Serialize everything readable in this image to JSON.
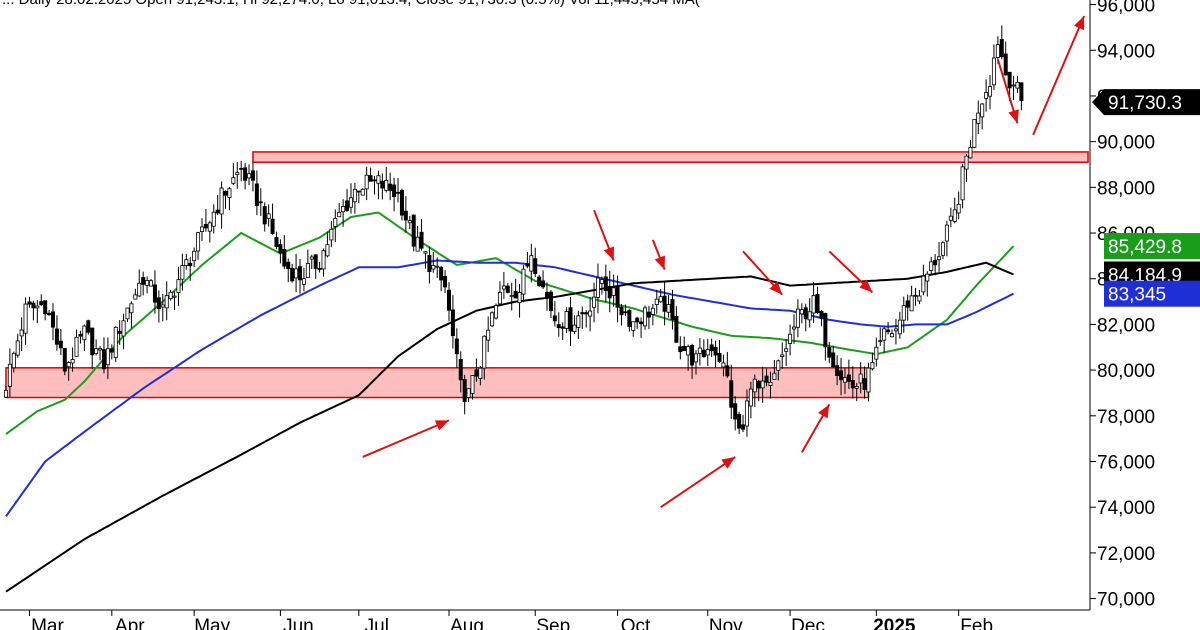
{
  "header": {
    "text": "...  Daily 28.02.2025  Open 91,243.1, Hi 92,274.0, Lo 91,013.4, Close 91,730.3 (0.5%)  Vol 11,443,454  MA(",
    "ma_suffix_color": "#00aa00"
  },
  "colors": {
    "candle": "#000000",
    "ma_green": "#1a9e1a",
    "ma_blue": "#1f2fd6",
    "ma_black": "#000000",
    "zone_fill": "#ffb3b3",
    "zone_stroke": "#e00000",
    "arrow": "#e01010",
    "price_tag_bg": "#000000",
    "green_tag_bg": "#1a9e1a",
    "blue_tag_bg": "#1f2fd6"
  },
  "chart_data": {
    "type": "candlestick",
    "title": "",
    "xlabel": "",
    "ylabel": "",
    "ylim": [
      69500,
      96200
    ],
    "yticks": [
      70000,
      72000,
      74000,
      76000,
      78000,
      80000,
      82000,
      84000,
      86000,
      88000,
      90000,
      92000,
      94000,
      96000
    ],
    "ytick_labels": [
      "70,000",
      "72,000",
      "74,000",
      "76,000",
      "78,000",
      "80,000",
      "82,000",
      "84,000",
      "86,000",
      "88,000",
      "90,000",
      "92,000",
      "94,000",
      "96,000"
    ],
    "x_tick_labels": [
      {
        "label": "Mar",
        "idx": 6
      },
      {
        "label": "Apr",
        "idx": 27
      },
      {
        "label": "May",
        "idx": 48
      },
      {
        "label": "Jun",
        "idx": 70
      },
      {
        "label": "Jul",
        "idx": 90
      },
      {
        "label": "Aug",
        "idx": 113
      },
      {
        "label": "Sep",
        "idx": 135
      },
      {
        "label": "Oct",
        "idx": 156
      },
      {
        "label": "Nov",
        "idx": 179
      },
      {
        "label": "Dec",
        "idx": 200
      },
      {
        "label": "2025",
        "idx": 222,
        "bold": true
      },
      {
        "label": "Feb",
        "idx": 243
      }
    ],
    "close_anchors": [
      [
        0,
        79400
      ],
      [
        5,
        82600
      ],
      [
        10,
        82900
      ],
      [
        15,
        80100
      ],
      [
        20,
        81600
      ],
      [
        25,
        80300
      ],
      [
        30,
        82300
      ],
      [
        35,
        84100
      ],
      [
        40,
        82600
      ],
      [
        45,
        84300
      ],
      [
        50,
        85900
      ],
      [
        55,
        87600
      ],
      [
        60,
        88800
      ],
      [
        63,
        87900
      ],
      [
        67,
        86400
      ],
      [
        71,
        84600
      ],
      [
        75,
        84100
      ],
      [
        80,
        84800
      ],
      [
        85,
        86800
      ],
      [
        90,
        88100
      ],
      [
        95,
        88200
      ],
      [
        100,
        87700
      ],
      [
        104,
        85700
      ],
      [
        108,
        84700
      ],
      [
        112,
        83600
      ],
      [
        116,
        79200
      ],
      [
        118,
        78900
      ],
      [
        121,
        80400
      ],
      [
        124,
        82300
      ],
      [
        127,
        83600
      ],
      [
        131,
        83500
      ],
      [
        134,
        85200
      ],
      [
        137,
        83600
      ],
      [
        140,
        82300
      ],
      [
        144,
        82100
      ],
      [
        148,
        82600
      ],
      [
        152,
        84000
      ],
      [
        156,
        82900
      ],
      [
        160,
        82100
      ],
      [
        164,
        82600
      ],
      [
        168,
        82900
      ],
      [
        172,
        81100
      ],
      [
        176,
        80400
      ],
      [
        180,
        81100
      ],
      [
        182,
        80600
      ],
      [
        184,
        79600
      ],
      [
        186,
        77600
      ],
      [
        188,
        77300
      ],
      [
        190,
        79600
      ],
      [
        192,
        79100
      ],
      [
        195,
        79200
      ],
      [
        198,
        80600
      ],
      [
        202,
        82300
      ],
      [
        206,
        82900
      ],
      [
        210,
        80900
      ],
      [
        213,
        79800
      ],
      [
        216,
        79300
      ],
      [
        219,
        79500
      ],
      [
        221,
        80100
      ],
      [
        224,
        81500
      ],
      [
        227,
        81800
      ],
      [
        230,
        83000
      ],
      [
        233,
        83500
      ],
      [
        236,
        84500
      ],
      [
        239,
        85500
      ],
      [
        242,
        86800
      ],
      [
        245,
        89300
      ],
      [
        248,
        91500
      ],
      [
        251,
        92800
      ],
      [
        253,
        94500
      ],
      [
        255,
        93000
      ],
      [
        257,
        92600
      ],
      [
        259,
        91730
      ]
    ],
    "series": [
      {
        "name": "",
        "color_key": "ma_green",
        "points": [
          [
            0,
            77200
          ],
          [
            8,
            78200
          ],
          [
            15,
            78700
          ],
          [
            20,
            79500
          ],
          [
            30,
            81500
          ],
          [
            40,
            83000
          ],
          [
            50,
            84600
          ],
          [
            60,
            86000
          ],
          [
            70,
            85100
          ],
          [
            80,
            85800
          ],
          [
            88,
            86700
          ],
          [
            95,
            86900
          ],
          [
            105,
            85700
          ],
          [
            115,
            84600
          ],
          [
            125,
            84900
          ],
          [
            135,
            83900
          ],
          [
            150,
            83100
          ],
          [
            160,
            82700
          ],
          [
            175,
            81900
          ],
          [
            185,
            81500
          ],
          [
            195,
            81400
          ],
          [
            205,
            81200
          ],
          [
            215,
            80900
          ],
          [
            222,
            80700
          ],
          [
            230,
            81000
          ],
          [
            240,
            82200
          ],
          [
            248,
            83800
          ],
          [
            253,
            84700
          ],
          [
            257,
            85429
          ]
        ]
      },
      {
        "name": "",
        "color_key": "ma_blue",
        "points": [
          [
            0,
            73600
          ],
          [
            10,
            76000
          ],
          [
            20,
            77300
          ],
          [
            35,
            79200
          ],
          [
            50,
            80900
          ],
          [
            65,
            82400
          ],
          [
            80,
            83700
          ],
          [
            90,
            84500
          ],
          [
            100,
            84500
          ],
          [
            110,
            84800
          ],
          [
            120,
            84700
          ],
          [
            130,
            84700
          ],
          [
            140,
            84500
          ],
          [
            150,
            84100
          ],
          [
            160,
            83700
          ],
          [
            170,
            83300
          ],
          [
            180,
            83000
          ],
          [
            190,
            82700
          ],
          [
            200,
            82600
          ],
          [
            210,
            82200
          ],
          [
            218,
            82000
          ],
          [
            225,
            81900
          ],
          [
            232,
            82000
          ],
          [
            240,
            82000
          ],
          [
            247,
            82500
          ],
          [
            257,
            83345
          ]
        ]
      },
      {
        "name": "",
        "color_key": "ma_black",
        "points": [
          [
            0,
            70300
          ],
          [
            20,
            72600
          ],
          [
            40,
            74500
          ],
          [
            60,
            76300
          ],
          [
            75,
            77700
          ],
          [
            90,
            78900
          ],
          [
            100,
            80600
          ],
          [
            110,
            81800
          ],
          [
            120,
            82600
          ],
          [
            130,
            83000
          ],
          [
            140,
            83200
          ],
          [
            150,
            83500
          ],
          [
            160,
            83800
          ],
          [
            170,
            83900
          ],
          [
            180,
            84000
          ],
          [
            190,
            84100
          ],
          [
            200,
            83700
          ],
          [
            210,
            83800
          ],
          [
            220,
            83900
          ],
          [
            230,
            84000
          ],
          [
            240,
            84300
          ],
          [
            250,
            84700
          ],
          [
            257,
            84184
          ]
        ]
      }
    ],
    "zones": [
      {
        "from_idx": 63,
        "to_idx": 276,
        "low": 89100,
        "high": 89550
      },
      {
        "from_idx": 0,
        "to_idx": 220,
        "low": 78800,
        "high": 80100
      }
    ],
    "price_tags": [
      {
        "value": 91730.3,
        "label": "91,730.3",
        "color_key": "price_tag_bg",
        "arrow": true
      },
      {
        "value": 85429.8,
        "label": "85,429.8",
        "color_key": "green_tag_bg"
      },
      {
        "value": 84184.9,
        "label": "84,184.9",
        "color_key": "price_tag_bg"
      },
      {
        "value": 83345,
        "label": "83,345",
        "color_key": "blue_tag_bg"
      }
    ],
    "annotations": [
      {
        "type": "arrow",
        "from": [
          91,
          76200
        ],
        "to": [
          113,
          77800
        ]
      },
      {
        "type": "arrow",
        "from": [
          167,
          74000
        ],
        "to": [
          186,
          76200
        ]
      },
      {
        "type": "arrow",
        "from": [
          203,
          76400
        ],
        "to": [
          210,
          78500
        ]
      },
      {
        "type": "arrow",
        "from": [
          150,
          87000
        ],
        "to": [
          155,
          84800
        ]
      },
      {
        "type": "arrow",
        "from": [
          165,
          85700
        ],
        "to": [
          168,
          84400
        ]
      },
      {
        "type": "arrow",
        "from": [
          188,
          85200
        ],
        "to": [
          198,
          83300
        ]
      },
      {
        "type": "arrow",
        "from": [
          210,
          85200
        ],
        "to": [
          221,
          83400
        ]
      },
      {
        "type": "arrow",
        "from": [
          253,
          93600
        ],
        "to": [
          258,
          90800
        ]
      },
      {
        "type": "arrow",
        "from": [
          262,
          90300
        ],
        "to": [
          275,
          95500
        ]
      }
    ]
  }
}
